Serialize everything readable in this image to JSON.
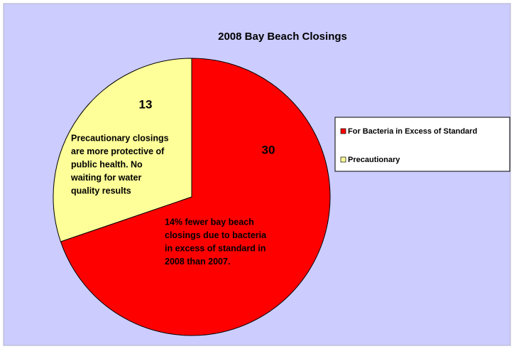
{
  "chart_data": {
    "type": "pie",
    "title": "2008 Bay Beach Closings",
    "categories": [
      "For Bacteria in Excess of Standard",
      "Precautionary"
    ],
    "values": [
      30,
      13
    ],
    "colors": [
      "#ff0000",
      "#ffff99"
    ],
    "legend": "right",
    "annotations": [
      [
        "Precautionary closings",
        "are more protective of",
        "public health.  No",
        "waiting for water",
        "quality results"
      ],
      [
        "14% fewer bay beach",
        "closings due to bacteria",
        "in excess of standard in",
        "2008 than 2007."
      ]
    ]
  }
}
